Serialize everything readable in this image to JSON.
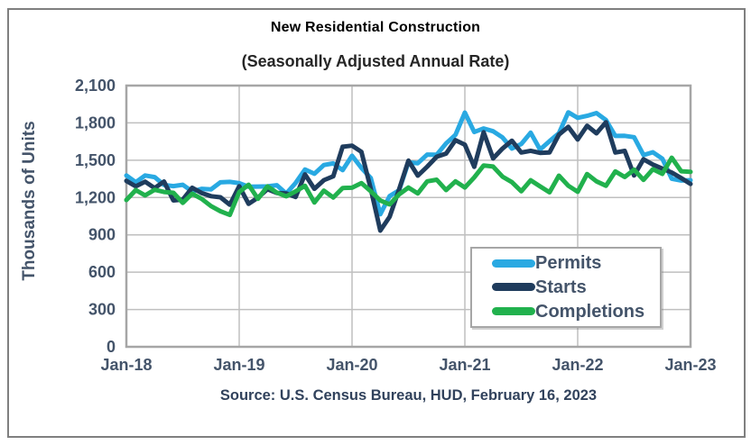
{
  "chart_data": {
    "type": "line",
    "title": "New Residential Construction",
    "subtitle": "(Seasonally Adjusted Annual Rate)",
    "ylabel": "Thousands of Units",
    "xlabel": "",
    "source_note": "Source:  U.S. Census Bureau, HUD, February 16, 2023",
    "frequency": "monthly",
    "x_range": [
      "Jan-2018",
      "Jan-2023"
    ],
    "x_tick_labels": [
      "Jan-18",
      "Jan-19",
      "Jan-20",
      "Jan-21",
      "Jan-22",
      "Jan-23"
    ],
    "y_tick_labels": [
      "0",
      "300",
      "600",
      "900",
      "1,200",
      "1,500",
      "1,800",
      "2,100"
    ],
    "ylim": [
      0,
      2100
    ],
    "y_step": 300,
    "grid": true,
    "legend_position": "lower-right",
    "series": [
      {
        "name": "Permits",
        "color": "#29A9E2",
        "values": [
          1377,
          1323,
          1377,
          1364,
          1301,
          1292,
          1303,
          1249,
          1270,
          1265,
          1322,
          1326,
          1316,
          1287,
          1288,
          1290,
          1299,
          1232,
          1317,
          1425,
          1391,
          1461,
          1474,
          1420,
          1536,
          1438,
          1356,
          1066,
          1212,
          1258,
          1483,
          1476,
          1545,
          1544,
          1635,
          1704,
          1883,
          1726,
          1755,
          1733,
          1683,
          1594,
          1630,
          1721,
          1586,
          1653,
          1717,
          1885,
          1841,
          1857,
          1879,
          1823,
          1695,
          1696,
          1685,
          1542,
          1564,
          1512,
          1351,
          1337,
          1339
        ]
      },
      {
        "name": "Starts",
        "color": "#1F3C5D",
        "values": [
          1334,
          1290,
          1327,
          1276,
          1329,
          1177,
          1184,
          1279,
          1237,
          1211,
          1202,
          1142,
          1291,
          1149,
          1199,
          1267,
          1237,
          1233,
          1204,
          1386,
          1270,
          1340,
          1371,
          1608,
          1617,
          1567,
          1269,
          934,
          1046,
          1265,
          1497,
          1376,
          1448,
          1528,
          1553,
          1661,
          1625,
          1447,
          1725,
          1514,
          1594,
          1657,
          1562,
          1576,
          1559,
          1563,
          1706,
          1768,
          1666,
          1777,
          1716,
          1805,
          1562,
          1575,
          1377,
          1508,
          1465,
          1432,
          1401,
          1357,
          1309
        ]
      },
      {
        "name": "Completions",
        "color": "#21B14D",
        "values": [
          1180,
          1260,
          1217,
          1262,
          1245,
          1238,
          1157,
          1231,
          1190,
          1131,
          1090,
          1060,
          1244,
          1303,
          1190,
          1290,
          1240,
          1210,
          1250,
          1294,
          1160,
          1256,
          1200,
          1277,
          1279,
          1316,
          1250,
          1176,
          1145,
          1225,
          1280,
          1233,
          1330,
          1343,
          1260,
          1330,
          1280,
          1362,
          1458,
          1449,
          1368,
          1324,
          1250,
          1339,
          1290,
          1242,
          1376,
          1295,
          1246,
          1389,
          1330,
          1295,
          1410,
          1365,
          1424,
          1342,
          1427,
          1390,
          1520,
          1411,
          1406
        ]
      }
    ],
    "style": {
      "gridline_color": "#BFBFBF",
      "plot_border_color": "#A6A6A6",
      "tick_text_color": "#44546A",
      "frame_border_color": "#7f7f7f",
      "line_width": 5
    }
  }
}
